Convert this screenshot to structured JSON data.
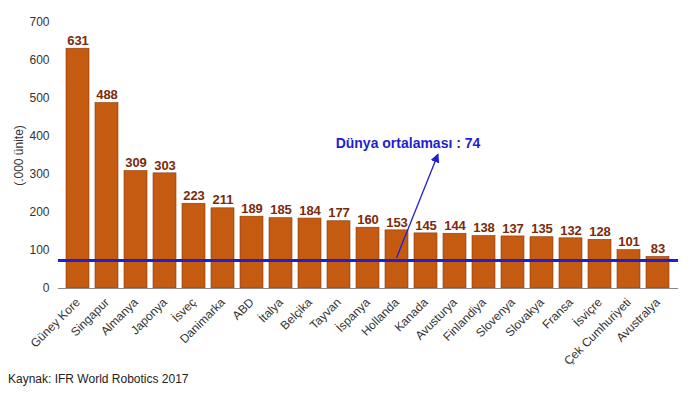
{
  "chart_data": {
    "type": "bar",
    "ylabel": "(.000 ünite)",
    "caption": "Kaynak: IFR World Robotics 2017",
    "categories": [
      "Güney Kore",
      "Singapur",
      "Almanya",
      "Japonya",
      "İsveç",
      "Danimarka",
      "ABD",
      "İtalya",
      "Belçika",
      "Tayvan",
      "İspanya",
      "Hollanda",
      "Kanada",
      "Avusturya",
      "Finlandiya",
      "Slovenya",
      "Slovakya",
      "Fransa",
      "İsviçre",
      "Çek Cumhuriyeti",
      "Avustralya"
    ],
    "values": [
      631,
      488,
      309,
      303,
      223,
      211,
      189,
      185,
      184,
      177,
      160,
      153,
      145,
      144,
      138,
      137,
      135,
      132,
      128,
      101,
      83
    ],
    "color": "#c55a11",
    "data_labels": true,
    "ylim": [
      0,
      700
    ],
    "yticks": [
      0,
      100,
      200,
      300,
      400,
      500,
      600,
      700
    ],
    "grid": false,
    "annotations": [
      {
        "type": "hline",
        "value": 74,
        "label": "Dünya ortalaması : 74",
        "color": "#1f1fd0"
      }
    ]
  }
}
